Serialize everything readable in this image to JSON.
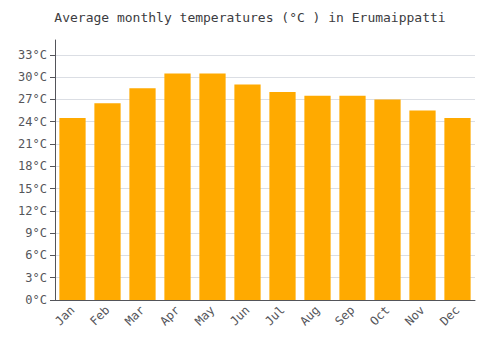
{
  "chart_data": {
    "type": "bar",
    "title": "Average monthly temperatures (°C ) in Erumaippatti",
    "categories": [
      "Jan",
      "Feb",
      "Mar",
      "Apr",
      "May",
      "Jun",
      "Jul",
      "Aug",
      "Sep",
      "Oct",
      "Nov",
      "Dec"
    ],
    "values": [
      24.5,
      26.5,
      28.5,
      30.5,
      30.5,
      29.0,
      28.0,
      27.5,
      27.5,
      27.0,
      25.5,
      24.5
    ],
    "color": "#FFAA00",
    "ylim": [
      0,
      35
    ],
    "yticks": [
      {
        "value": 0,
        "label": "0°C"
      },
      {
        "value": 3,
        "label": "3°C"
      },
      {
        "value": 6,
        "label": "6°C"
      },
      {
        "value": 9,
        "label": "9°C"
      },
      {
        "value": 12,
        "label": "12°C"
      },
      {
        "value": 15,
        "label": "15°C"
      },
      {
        "value": 18,
        "label": "18°C"
      },
      {
        "value": 21,
        "label": "21°C"
      },
      {
        "value": 24,
        "label": "24°C"
      },
      {
        "value": 27,
        "label": "27°C"
      },
      {
        "value": 30,
        "label": "30°C"
      },
      {
        "value": 33,
        "label": "33°C"
      }
    ],
    "grid": true
  }
}
